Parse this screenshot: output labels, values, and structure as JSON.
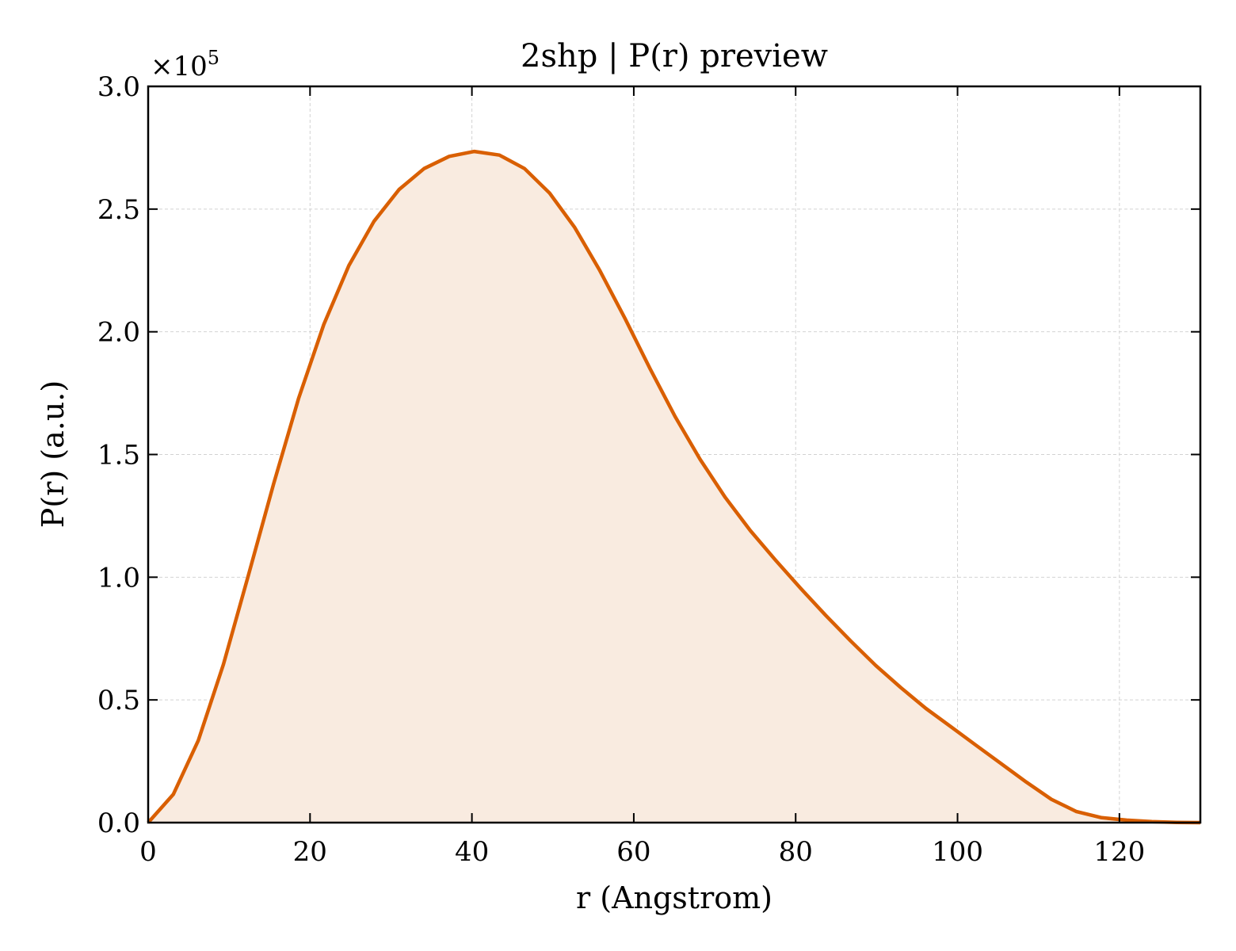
{
  "chart_data": {
    "type": "area",
    "title": "2shp | P(r) preview",
    "xlabel": "r (Angstrom)",
    "ylabel": "P(r) (a.u.)",
    "y_multiplier_label": "×10",
    "y_multiplier_exponent": "5",
    "xlim": [
      0,
      130
    ],
    "ylim": [
      0,
      3.0
    ],
    "xticks": [
      0,
      20,
      40,
      60,
      80,
      100,
      120
    ],
    "yticks": [
      0.0,
      0.5,
      1.0,
      1.5,
      2.0,
      2.5,
      3.0
    ],
    "grid": true,
    "line_color": "#D95F02",
    "fill_color": "#F9EBE0",
    "series": [
      {
        "x": [
          0,
          3.1,
          6.2,
          9.3,
          12.4,
          15.5,
          18.6,
          21.7,
          24.8,
          27.9,
          31.0,
          34.1,
          37.2,
          40.3,
          43.4,
          46.5,
          49.6,
          52.7,
          55.8,
          58.9,
          62.0,
          65.1,
          68.2,
          71.3,
          74.4,
          77.5,
          80.6,
          83.7,
          86.8,
          89.9,
          93.0,
          96.1,
          99.2,
          102.3,
          105.4,
          108.5,
          111.6,
          114.7,
          117.8,
          120.9,
          124.0,
          127.1,
          130.0
        ],
        "y": [
          0.0,
          0.115,
          0.335,
          0.645,
          1.01,
          1.38,
          1.73,
          2.03,
          2.27,
          2.45,
          2.58,
          2.665,
          2.715,
          2.735,
          2.72,
          2.665,
          2.565,
          2.425,
          2.25,
          2.055,
          1.85,
          1.655,
          1.48,
          1.325,
          1.19,
          1.07,
          0.955,
          0.845,
          0.74,
          0.64,
          0.55,
          0.465,
          0.39,
          0.315,
          0.24,
          0.165,
          0.095,
          0.045,
          0.02,
          0.01,
          0.004,
          0.001,
          0.0
        ]
      }
    ]
  }
}
